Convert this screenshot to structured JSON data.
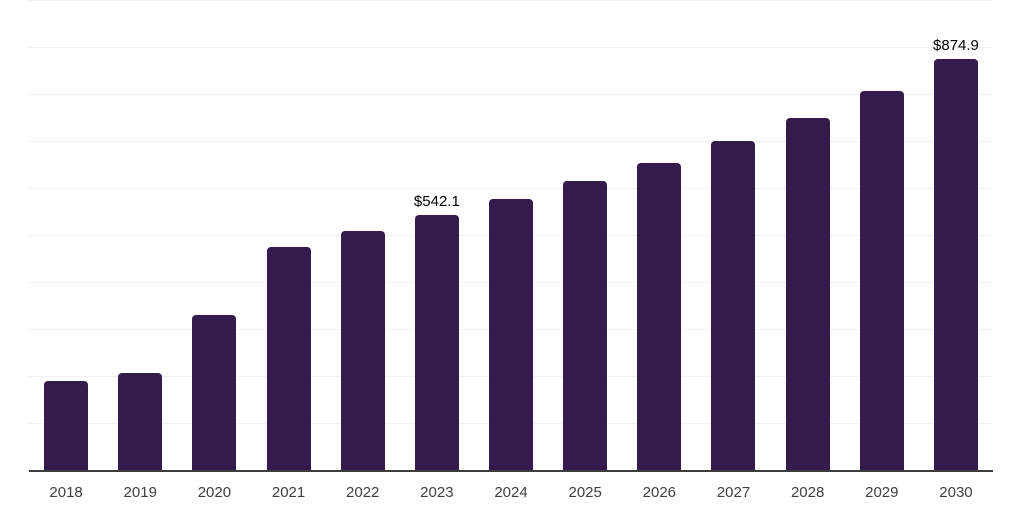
{
  "chart_data": {
    "type": "bar",
    "title": "",
    "xlabel": "",
    "ylabel": "",
    "categories": [
      "2018",
      "2019",
      "2020",
      "2021",
      "2022",
      "2023",
      "2024",
      "2025",
      "2026",
      "2027",
      "2028",
      "2029",
      "2030"
    ],
    "values": [
      190,
      207,
      330,
      475,
      509,
      542.1,
      576,
      614,
      654,
      699,
      749,
      807,
      874.9
    ],
    "data_labels": [
      {
        "category": "2023",
        "text": "$542.1"
      },
      {
        "category": "2030",
        "text": "$874.9"
      }
    ],
    "ylim": [
      0,
      1000
    ],
    "gridline_step": 100,
    "grid": "horizontal",
    "legend_position": "none",
    "y_tick_labels_visible": false
  },
  "colors": {
    "bar": "#351a4e",
    "gridline": "#f1f1f4",
    "axis_line": "#3c3c3c",
    "tick_label": "#404040",
    "data_label": "#000000",
    "background": "#ffffff"
  }
}
